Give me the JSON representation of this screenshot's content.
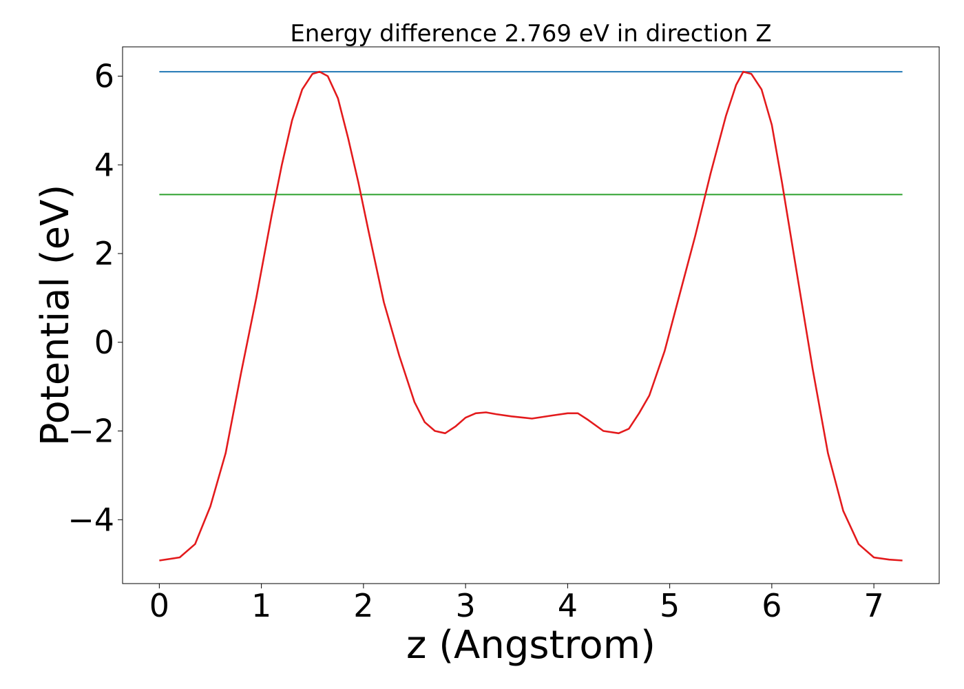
{
  "chart_data": {
    "type": "line",
    "title": "Energy difference 2.769 eV in direction Z",
    "xlabel": "z (Angstrom)",
    "ylabel": "Potential (eV)",
    "xlim": [
      -0.36,
      7.64
    ],
    "ylim": [
      -5.44,
      6.66
    ],
    "xticks": [
      0,
      1,
      2,
      3,
      4,
      5,
      6,
      7
    ],
    "xtick_labels": [
      "0",
      "1",
      "2",
      "3",
      "4",
      "5",
      "6",
      "7"
    ],
    "yticks": [
      6,
      4,
      2,
      0,
      -2,
      -4
    ],
    "ytick_labels": [
      "6",
      "4",
      "2",
      "0",
      "−2",
      "−4"
    ],
    "grid": false,
    "series": [
      {
        "color": "#1f77b4",
        "x": [
          0,
          7.28
        ],
        "y": [
          6.1,
          6.1
        ]
      },
      {
        "color": "#2ca02c",
        "x": [
          0,
          7.28
        ],
        "y": [
          3.33,
          3.33
        ]
      },
      {
        "color": "#e31a1c",
        "x": [
          0,
          0.2,
          0.35,
          0.5,
          0.65,
          0.8,
          0.95,
          1.1,
          1.2,
          1.3,
          1.4,
          1.5,
          1.57,
          1.65,
          1.75,
          1.85,
          1.95,
          2.05,
          2.2,
          2.35,
          2.5,
          2.6,
          2.7,
          2.8,
          2.9,
          3.0,
          3.1,
          3.2,
          3.3,
          3.45,
          3.65,
          3.85,
          4.0,
          4.1,
          4.2,
          4.35,
          4.5,
          4.6,
          4.7,
          4.8,
          4.95,
          5.1,
          5.25,
          5.4,
          5.55,
          5.65,
          5.72,
          5.8,
          5.9,
          6.0,
          6.1,
          6.25,
          6.4,
          6.55,
          6.7,
          6.85,
          7.0,
          7.15,
          7.28
        ],
        "y": [
          -4.92,
          -4.85,
          -4.55,
          -3.7,
          -2.5,
          -0.7,
          1.0,
          2.85,
          4.0,
          5.0,
          5.7,
          6.05,
          6.1,
          6.0,
          5.5,
          4.6,
          3.6,
          2.5,
          0.9,
          -0.3,
          -1.35,
          -1.8,
          -2.0,
          -2.05,
          -1.9,
          -1.7,
          -1.6,
          -1.58,
          -1.62,
          -1.67,
          -1.72,
          -1.65,
          -1.6,
          -1.6,
          -1.75,
          -2.0,
          -2.05,
          -1.95,
          -1.6,
          -1.2,
          -0.2,
          1.1,
          2.4,
          3.8,
          5.1,
          5.8,
          6.1,
          6.05,
          5.7,
          4.9,
          3.6,
          1.5,
          -0.6,
          -2.5,
          -3.8,
          -4.55,
          -4.85,
          -4.9,
          -4.92
        ]
      }
    ]
  }
}
